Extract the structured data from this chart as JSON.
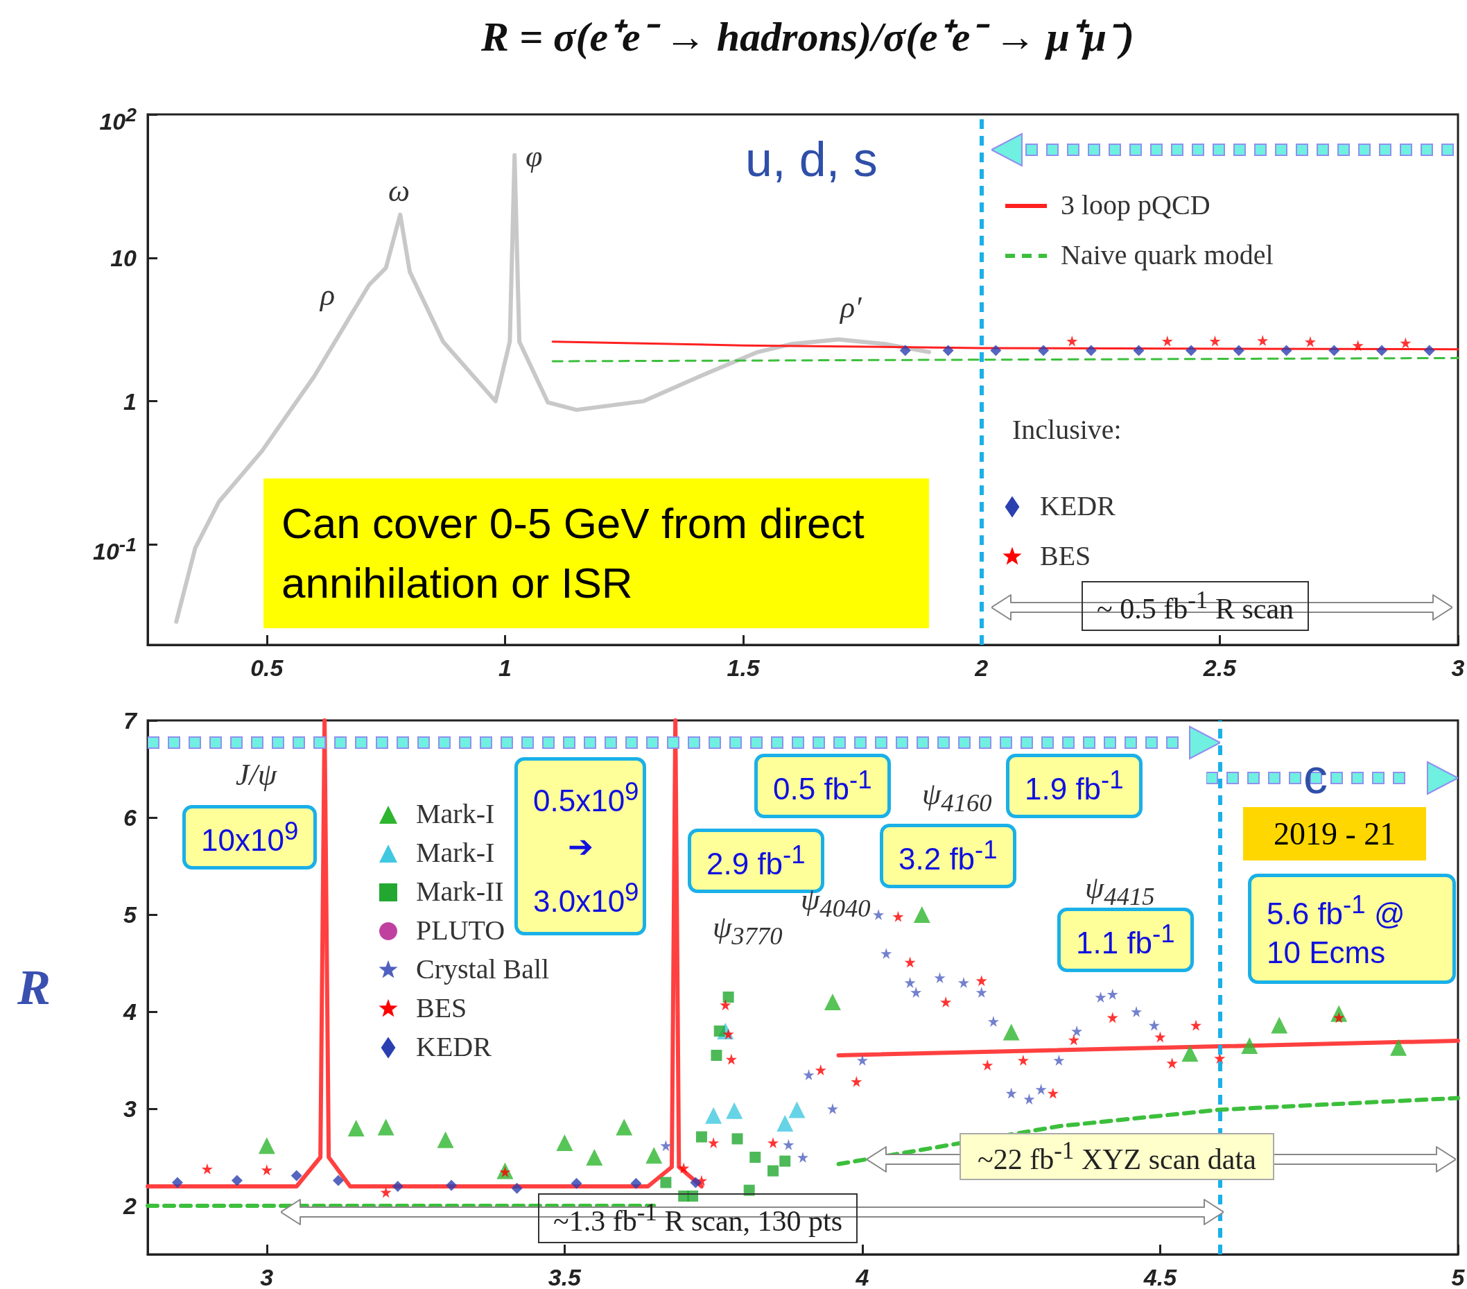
{
  "chart_data": [
    {
      "type": "scatter",
      "title": "R = σ(e⁺e⁻ → hadrons)/σ(e⁺e⁻ → μ⁺μ⁻)",
      "xlim": [
        0.25,
        3
      ],
      "xticks": [
        0.5,
        1,
        1.5,
        2,
        2.5,
        3
      ],
      "ylim": [
        0.02,
        100
      ],
      "log": true,
      "yticks": [
        {
          "value": 0.1,
          "label": "10$^{-1}$"
        },
        1,
        10,
        {
          "value": 100,
          "label": "10$^{2}$"
        }
      ],
      "legend": "right",
      "legend_title": "Inclusive:",
      "series": [
        {
          "type": "line",
          "marker": "none",
          "color": "#c8c8c8",
          "x": [
            0.31,
            0.35,
            0.4,
            0.49,
            0.6,
            0.715,
            0.75,
            0.78,
            0.8,
            0.87,
            0.98,
            1.01,
            1.02,
            1.03,
            1.09,
            1.15,
            1.29,
            1.43,
            1.53,
            1.6,
            1.7,
            1.8,
            1.89
          ],
          "values": [
            0.029,
            0.095,
            0.2,
            0.45,
            1.5,
            6.5,
            8.5,
            20,
            8,
            2.6,
            1,
            2.6,
            52,
            2.6,
            0.98,
            0.87,
            1,
            1.6,
            2.2,
            2.5,
            2.7,
            2.5,
            2.2
          ]
        },
        {
          "type": "line",
          "name": "3 loop pQCD",
          "marker": "none",
          "line_style": "solid",
          "color": "#ff2020",
          "x": [
            1.1,
            1.5,
            2,
            3
          ],
          "values": [
            2.6,
            2.45,
            2.35,
            2.3
          ]
        },
        {
          "type": "line",
          "name": "Naive quark model",
          "marker": "none",
          "line_style": "dashed",
          "color": "#3cbf3c",
          "x": [
            1.1,
            3
          ],
          "values": [
            1.9,
            2
          ]
        },
        {
          "name": "KEDR",
          "marker": "diamond",
          "color": "#2a3fb0",
          "x": [
            1.84,
            1.93,
            2.03,
            2.13,
            2.23,
            2.33,
            2.44,
            2.54,
            2.64,
            2.74,
            2.84,
            2.94
          ],
          "values": [
            2.26,
            2.26,
            2.26,
            2.26,
            2.26,
            2.26,
            2.26,
            2.26,
            2.26,
            2.26,
            2.26,
            2.26
          ]
        },
        {
          "name": "BES",
          "marker": "star",
          "color": "#ff0000",
          "x": [
            2.19,
            2.39,
            2.49,
            2.59,
            2.69,
            2.79,
            2.89
          ],
          "values": [
            2.63,
            2.63,
            2.63,
            2.65,
            2.6,
            2.45,
            2.55
          ]
        }
      ],
      "ref_lines": [
        {
          "axis": "x",
          "value": 2,
          "color": "#1ab0e8",
          "line_style": "dashed"
        }
      ],
      "annotations": [
        "u, d, s",
        "Can cover 0-5 GeV from direct annihilation or ISR",
        "~ 0.5 fb$^{-1}$ R scan",
        "ρ",
        "ω",
        "φ",
        "ρ′"
      ]
    },
    {
      "type": "scatter",
      "ylabel": "R",
      "xlim": [
        2.8,
        5
      ],
      "xticks": [
        3,
        3.5,
        4,
        4.5,
        5
      ],
      "ylim": [
        1.5,
        7
      ],
      "yticks": [
        2,
        3,
        4,
        5,
        6,
        7
      ],
      "legend": "left",
      "series": [
        {
          "type": "line",
          "marker": "none",
          "line_style": "solid",
          "color": "#ff4040",
          "x": [
            2.8,
            3.05,
            3.09,
            3.097,
            3.104,
            3.14,
            3.64,
            3.68,
            3.686,
            3.692,
            3.73,
            3.8,
            3.96,
            5
          ],
          "values": [
            2.2,
            2.2,
            2.5,
            7,
            2.5,
            2.2,
            2.2,
            2.4,
            7,
            2.4,
            2.2,
            null,
            3.55,
            3.7
          ]
        },
        {
          "type": "line",
          "marker": "none",
          "line_style": "dashed",
          "color": "#3cbf3c",
          "x": [
            2.8,
            3.65,
            3.7,
            3.96,
            4.33,
            4.6,
            5
          ],
          "values": [
            2,
            2,
            null,
            2.43,
            2.82,
            2.99,
            3.11
          ]
        },
        {
          "name": "Mark-I",
          "marker": "triangle",
          "color": "#2db52d",
          "x": [
            3.0,
            3.15,
            3.2,
            3.3,
            3.4,
            3.5,
            3.55,
            3.6,
            3.65,
            3.95,
            4.1,
            4.25,
            4.55,
            4.65,
            4.7,
            4.8,
            4.9
          ],
          "values": [
            2.62,
            2.8,
            2.81,
            2.68,
            2.36,
            2.65,
            2.5,
            2.81,
            2.52,
            4.1,
            5.0,
            3.79,
            3.57,
            3.65,
            3.86,
            3.98,
            3.63
          ]
        },
        {
          "name": "Mark-I",
          "marker": "triangle",
          "color": "#40c8e0",
          "x": [
            3.75,
            3.77,
            3.785,
            3.87,
            3.89
          ],
          "values": [
            2.93,
            3.8,
            2.98,
            2.85,
            2.99
          ]
        },
        {
          "name": "Mark-II",
          "marker": "square",
          "color": "#22a830",
          "x": [
            3.67,
            3.7,
            3.715,
            3.73,
            3.755,
            3.76,
            3.775,
            3.79,
            3.81,
            3.82,
            3.85,
            3.87
          ],
          "values": [
            2.24,
            2.1,
            2.1,
            2.71,
            3.55,
            3.8,
            4.15,
            2.69,
            2.16,
            2.5,
            2.36,
            2.46
          ]
        },
        {
          "name": "PLUTO",
          "marker": "circle",
          "color": "#c040a0"
        },
        {
          "name": "Crystal Ball",
          "marker": "star",
          "color": "#5060c0",
          "x": [
            3.67,
            3.876,
            3.9,
            3.91,
            3.95,
            4.0,
            4.027,
            4.04,
            4.08,
            4.09,
            4.13,
            4.17,
            4.2,
            4.22,
            4.25,
            4.28,
            4.3,
            4.33,
            4.36,
            4.4,
            4.42,
            4.46,
            4.49
          ],
          "values": [
            2.62,
            2.63,
            2.5,
            3.35,
            3.0,
            3.5,
            5.0,
            4.6,
            4.3,
            4.2,
            4.35,
            4.3,
            4.2,
            3.9,
            3.16,
            3.1,
            3.2,
            3.5,
            3.8,
            4.15,
            4.18,
            4.0,
            3.86
          ]
        },
        {
          "name": "BES",
          "marker": "star",
          "color": "#ff0000",
          "x": [
            2.9,
            3.0,
            3.2,
            3.4,
            3.7,
            3.73,
            3.75,
            3.77,
            3.775,
            3.78,
            3.85,
            3.93,
            3.99,
            4.06,
            4.08,
            4.14,
            4.2,
            4.21,
            4.27,
            4.32,
            4.355,
            4.42,
            4.5,
            4.52,
            4.56,
            4.6,
            4.8
          ],
          "values": [
            2.38,
            2.37,
            2.14,
            2.35,
            2.39,
            2.26,
            2.65,
            4.07,
            3.77,
            3.51,
            2.65,
            3.4,
            3.28,
            4.98,
            4.51,
            4.1,
            4.32,
            3.45,
            3.5,
            3.16,
            3.71,
            3.94,
            3.74,
            3.47,
            3.86,
            3.52,
            3.94
          ]
        },
        {
          "name": "KEDR",
          "marker": "diamond",
          "color": "#2a3fb0",
          "x": [
            2.85,
            2.95,
            3.05,
            3.12,
            3.22,
            3.31,
            3.42,
            3.52,
            3.62,
            3.72
          ],
          "values": [
            2.24,
            2.26,
            2.31,
            2.26,
            2.2,
            2.21,
            2.18,
            2.23,
            2.23,
            2.24
          ]
        }
      ],
      "ref_lines": [
        {
          "axis": "x",
          "value": 4.6,
          "color": "#1ab0e8",
          "line_style": "dashed"
        }
      ],
      "annotations": [
        "10x10$^{9}$",
        "0.5x10$^{9}$ ➔ 3.0x10$^{9}$",
        "2.9 fb$^{-1}$",
        "0.5 fb$^{-1}$",
        "3.2 fb$^{-1}$",
        "1.9 fb$^{-1}$",
        "1.1 fb$^{-1}$",
        "c",
        "2019 - 21",
        "5.6 fb$^{-1}$ @ 10 Ecms",
        "~1.3 fb$^{-1}$ R scan, 130 pts",
        "~22 fb$^{-1}$ XYZ scan data",
        "J/ψ",
        "ψ$_{3770}$",
        "ψ$_{4040}$",
        "ψ$_{4160}$",
        "ψ$_{4415}$"
      ]
    }
  ]
}
